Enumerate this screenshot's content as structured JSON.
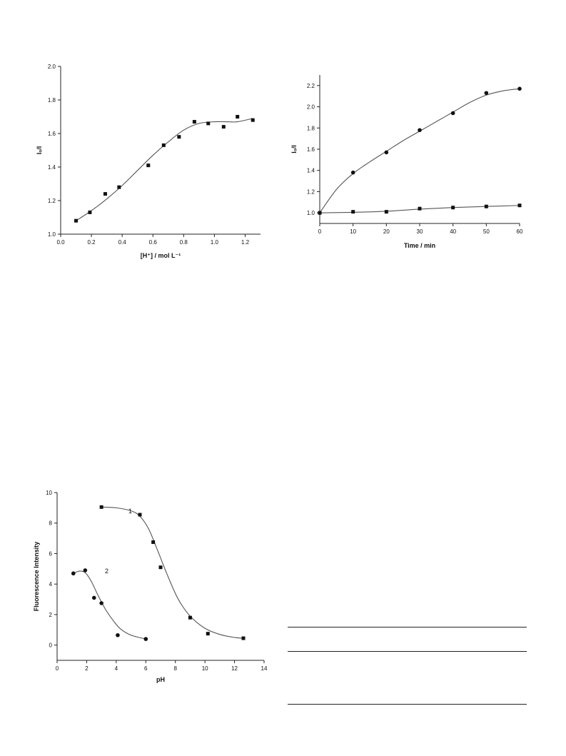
{
  "chart_data": [
    {
      "id": "c1",
      "type": "scatter",
      "xlabel": "[H⁺] / mol L⁻¹",
      "ylabel": "I₀/I",
      "xlim": [
        0.0,
        1.3
      ],
      "ylim": [
        1.0,
        2.0
      ],
      "xticks": [
        0.0,
        0.2,
        0.4,
        0.6,
        0.8,
        1.0,
        1.2
      ],
      "yticks": [
        1.0,
        1.2,
        1.4,
        1.6,
        1.8,
        2.0
      ],
      "tick_decimals": [
        1,
        1
      ],
      "series": [
        {
          "marker": "square",
          "x": [
            0.1,
            0.19,
            0.29,
            0.38,
            0.57,
            0.67,
            0.77,
            0.87,
            0.96,
            1.06,
            1.15,
            1.25
          ],
          "y": [
            1.08,
            1.13,
            1.24,
            1.28,
            1.41,
            1.53,
            1.58,
            1.67,
            1.66,
            1.64,
            1.7,
            1.68
          ],
          "fit": [
            [
              0.1,
              1.08
            ],
            [
              0.2,
              1.14
            ],
            [
              0.3,
              1.21
            ],
            [
              0.4,
              1.29
            ],
            [
              0.5,
              1.38
            ],
            [
              0.6,
              1.47
            ],
            [
              0.7,
              1.55
            ],
            [
              0.8,
              1.62
            ],
            [
              0.9,
              1.66
            ],
            [
              1.0,
              1.67
            ],
            [
              1.08,
              1.67
            ],
            [
              1.15,
              1.67
            ],
            [
              1.25,
              1.69
            ]
          ]
        }
      ]
    },
    {
      "id": "c2",
      "type": "scatter",
      "xlabel": "Time / min",
      "ylabel": "I₀/I",
      "xlim": [
        0,
        60
      ],
      "ylim": [
        0.9,
        2.3
      ],
      "xticks": [
        0,
        10,
        20,
        30,
        40,
        50,
        60
      ],
      "yticks": [
        1.0,
        1.2,
        1.4,
        1.6,
        1.8,
        2.0,
        2.2
      ],
      "tick_decimals": [
        0,
        1
      ],
      "series": [
        {
          "marker": "circle",
          "x": [
            0,
            10,
            20,
            30,
            40,
            50,
            60
          ],
          "y": [
            1.0,
            1.38,
            1.57,
            1.78,
            1.94,
            2.13,
            2.17
          ],
          "fit": [
            [
              0,
              1.0
            ],
            [
              5,
              1.22
            ],
            [
              10,
              1.37
            ],
            [
              15,
              1.48
            ],
            [
              20,
              1.58
            ],
            [
              25,
              1.68
            ],
            [
              30,
              1.77
            ],
            [
              35,
              1.86
            ],
            [
              40,
              1.95
            ],
            [
              45,
              2.04
            ],
            [
              50,
              2.11
            ],
            [
              55,
              2.15
            ],
            [
              60,
              2.17
            ]
          ]
        },
        {
          "marker": "square",
          "x": [
            0,
            10,
            20,
            30,
            40,
            50,
            60
          ],
          "y": [
            1.0,
            1.01,
            1.01,
            1.04,
            1.05,
            1.06,
            1.07
          ],
          "fit": [
            [
              0,
              1.0
            ],
            [
              10,
              1.005
            ],
            [
              20,
              1.015
            ],
            [
              30,
              1.035
            ],
            [
              40,
              1.05
            ],
            [
              50,
              1.06
            ],
            [
              60,
              1.07
            ]
          ]
        }
      ]
    },
    {
      "id": "c3",
      "type": "scatter",
      "xlabel": "pH",
      "ylabel": "Fluorescence Intensity",
      "xlim": [
        0,
        14
      ],
      "ylim": [
        -1,
        10
      ],
      "xticks": [
        0,
        2,
        4,
        6,
        8,
        10,
        12,
        14
      ],
      "yticks": [
        0,
        2,
        4,
        6,
        8,
        10
      ],
      "tick_decimals": [
        0,
        0
      ],
      "series": [
        {
          "name": "1",
          "marker": "square",
          "x": [
            3.0,
            5.6,
            6.5,
            7.0,
            9.0,
            10.2,
            12.6
          ],
          "y": [
            9.05,
            8.55,
            6.75,
            5.1,
            1.8,
            0.75,
            0.45
          ],
          "fit": [
            [
              3.0,
              9.05
            ],
            [
              4.0,
              9.0
            ],
            [
              5.0,
              8.8
            ],
            [
              5.6,
              8.45
            ],
            [
              6.2,
              7.6
            ],
            [
              6.8,
              6.2
            ],
            [
              7.5,
              4.5
            ],
            [
              8.2,
              3.0
            ],
            [
              9.0,
              1.9
            ],
            [
              10.0,
              1.1
            ],
            [
              11.0,
              0.7
            ],
            [
              12.0,
              0.5
            ],
            [
              12.6,
              0.45
            ]
          ]
        },
        {
          "name": "2",
          "marker": "circle",
          "x": [
            1.1,
            1.9,
            2.5,
            3.0,
            4.1,
            6.0
          ],
          "y": [
            4.7,
            4.9,
            3.1,
            2.75,
            0.65,
            0.4
          ],
          "fit": [
            [
              1.1,
              4.7
            ],
            [
              1.5,
              4.85
            ],
            [
              1.9,
              4.75
            ],
            [
              2.3,
              4.2
            ],
            [
              2.8,
              3.2
            ],
            [
              3.3,
              2.3
            ],
            [
              3.8,
              1.6
            ],
            [
              4.3,
              1.05
            ],
            [
              5.0,
              0.65
            ],
            [
              6.0,
              0.4
            ]
          ]
        }
      ]
    }
  ]
}
